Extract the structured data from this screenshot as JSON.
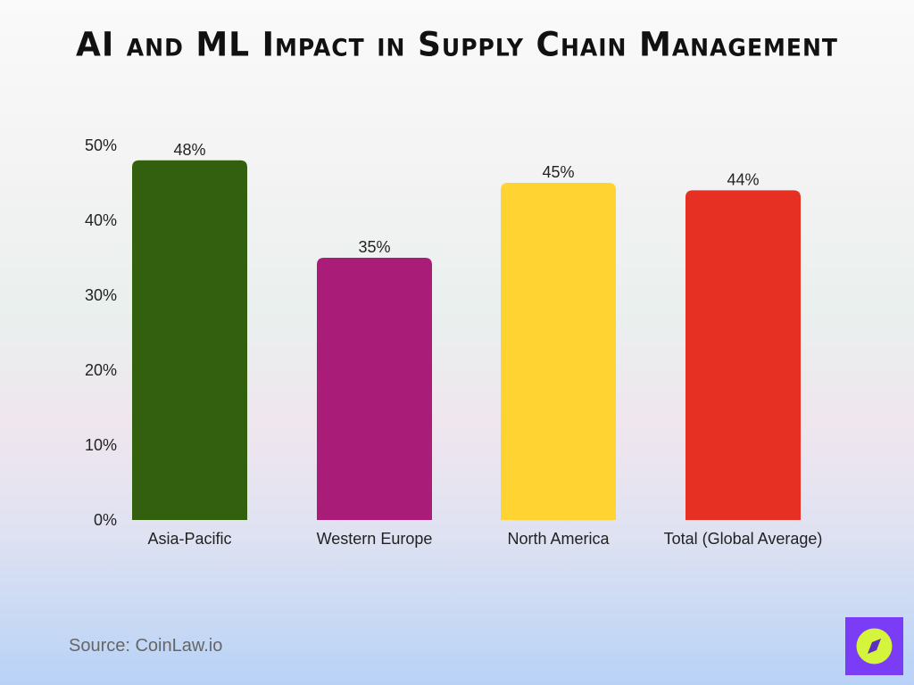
{
  "chart_data": {
    "type": "bar",
    "title": "AI and ML Impact in Supply Chain Management",
    "categories": [
      "Asia-Pacific",
      "Western Europe",
      "North America",
      "Total (Global Average)"
    ],
    "values": [
      48,
      35,
      45,
      44
    ],
    "data_labels": [
      "48%",
      "35%",
      "45%",
      "44%"
    ],
    "colors": [
      "#33600f",
      "#a91c78",
      "#fed332",
      "#e63023"
    ],
    "ylim": [
      0,
      50
    ],
    "yticks": [
      "0%",
      "10%",
      "20%",
      "30%",
      "40%",
      "50%"
    ],
    "grid": false,
    "legend": "none"
  },
  "source": "Source: CoinLaw.io",
  "logo": {
    "icon": "compass-icon",
    "bg": "#7a3cf5",
    "fg": "#d4f53c"
  }
}
